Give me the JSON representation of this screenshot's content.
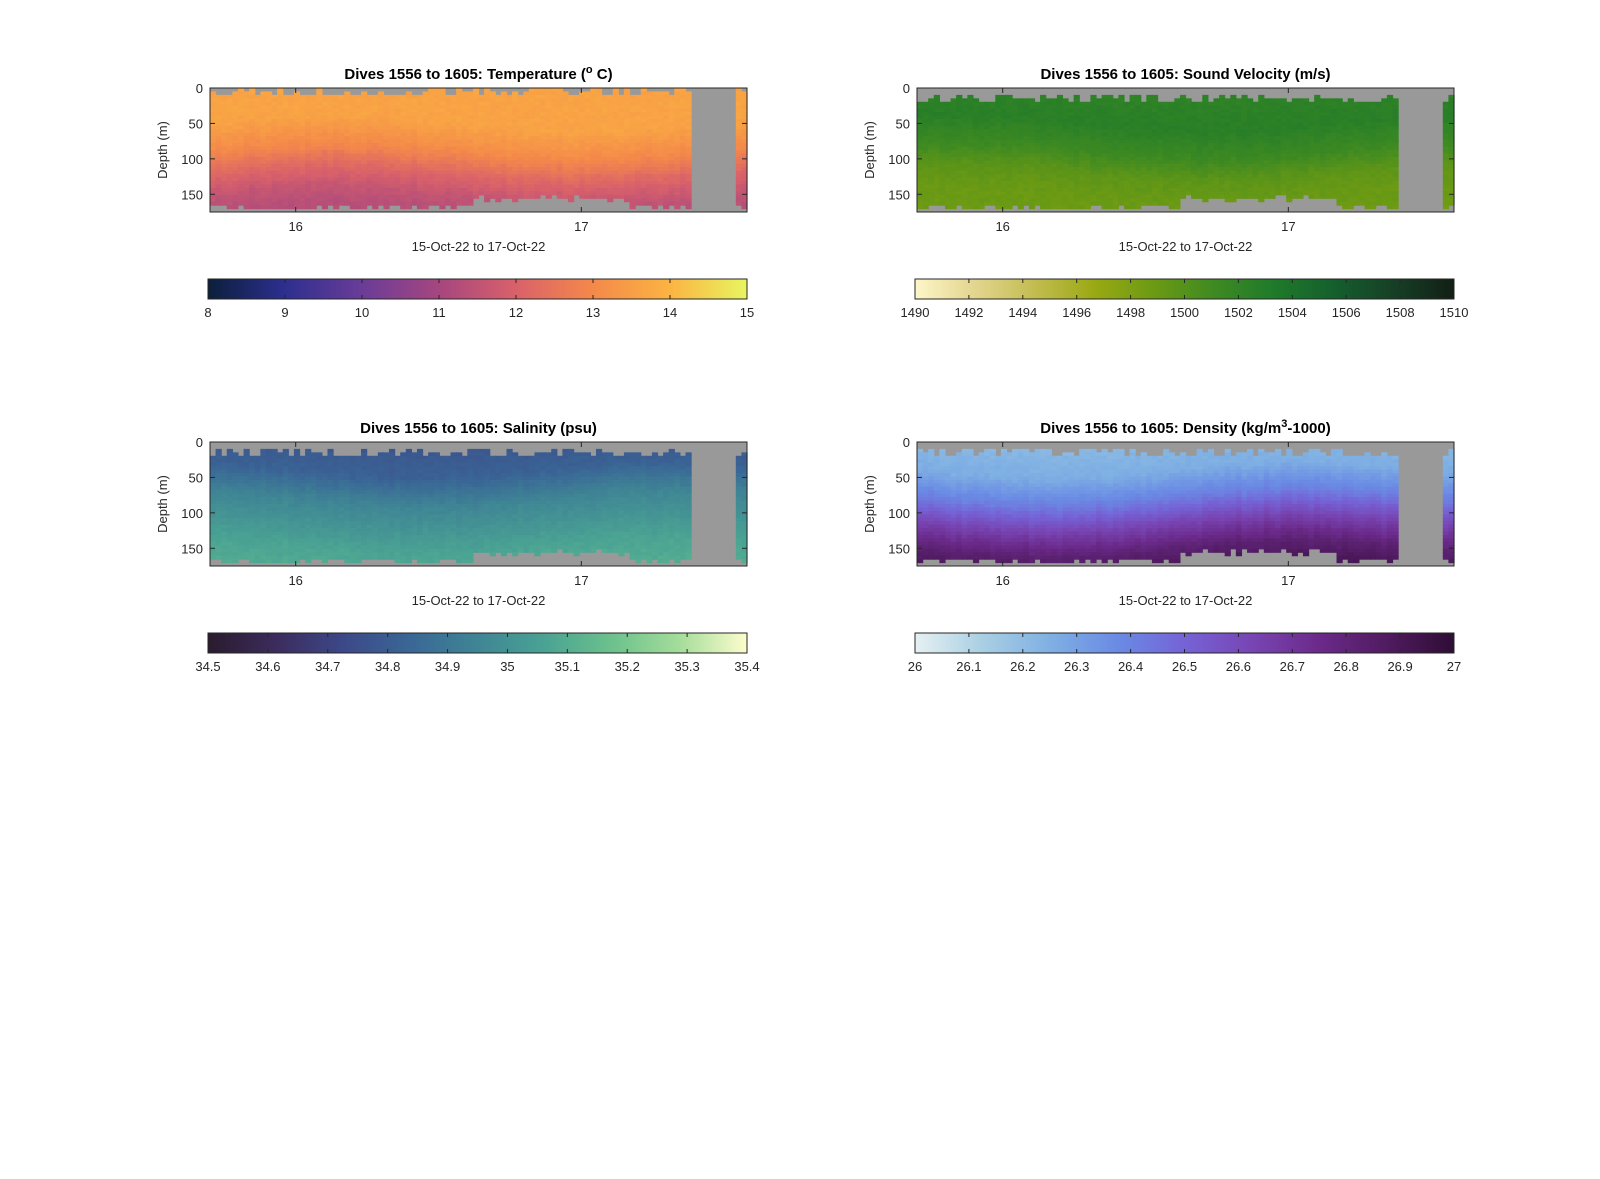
{
  "figure": {
    "panels": [
      {
        "id": "temperature",
        "title_main": "Dives 1556 to 1605: Temperature (",
        "title_sup": "o",
        "title_tail": " C)",
        "ylabel": "Depth (m)",
        "xlabel": "15-Oct-22 to 17-Oct-22",
        "colormap": [
          "#0b1f3b",
          "#2d2f8f",
          "#6a3c98",
          "#a6467f",
          "#d9616a",
          "#f4894a",
          "#fbb442",
          "#e8f560"
        ],
        "colorbar_ticks": [
          "8",
          "9",
          "10",
          "11",
          "12",
          "13",
          "14",
          "15"
        ]
      },
      {
        "id": "sound-velocity",
        "title_main": "Dives 1556 to 1605: Sound Velocity (m/s)",
        "title_sup": "",
        "title_tail": "",
        "ylabel": "Depth (m)",
        "xlabel": "15-Oct-22 to 17-Oct-22",
        "colormap": [
          "#fdf6c8",
          "#e3d58f",
          "#c3bc50",
          "#99a913",
          "#6b9a14",
          "#3e8a22",
          "#1f7a2a",
          "#155f2d",
          "#163f26",
          "#121f14"
        ],
        "colorbar_ticks": [
          "1490",
          "1492",
          "1494",
          "1496",
          "1498",
          "1500",
          "1502",
          "1504",
          "1506",
          "1508",
          "1510"
        ]
      },
      {
        "id": "salinity",
        "title_main": "Dives 1556 to 1605: Salinity (psu)",
        "title_sup": "",
        "title_tail": "",
        "ylabel": "Depth (m)",
        "xlabel": "15-Oct-22 to 17-Oct-22",
        "colormap": [
          "#2a1b2e",
          "#3b2c5c",
          "#3c4888",
          "#3a6796",
          "#3f8595",
          "#4aa393",
          "#6cc18c",
          "#a5dd9b",
          "#fdfdcc"
        ],
        "colorbar_ticks": [
          "34.5",
          "34.6",
          "34.7",
          "34.8",
          "34.9",
          "35",
          "35.1",
          "35.2",
          "35.3",
          "35.4"
        ]
      },
      {
        "id": "density",
        "title_main": "Dives 1556 to 1605: Density (kg/m",
        "title_sup": "3",
        "title_tail": "-1000)",
        "ylabel": "Depth (m)",
        "xlabel": "15-Oct-22 to 17-Oct-22",
        "colormap": [
          "#e6f1f2",
          "#a9cfe3",
          "#7fb0e3",
          "#6a8be4",
          "#7563d6",
          "#7845b3",
          "#6b2a8a",
          "#501b60",
          "#2e0d35"
        ],
        "colorbar_ticks": [
          "26",
          "26.1",
          "26.2",
          "26.3",
          "26.4",
          "26.5",
          "26.6",
          "26.7",
          "26.8",
          "26.9",
          "27"
        ]
      }
    ]
  },
  "chart_data": [
    {
      "type": "heatmap",
      "title": "Dives 1556 to 1605: Temperature (° C)",
      "xlabel": "15-Oct-22 to 17-Oct-22",
      "ylabel": "Depth (m)",
      "x_ticks": [
        "16",
        "17"
      ],
      "y_ticks": [
        0,
        50,
        100,
        150
      ],
      "ylim": [
        0,
        175
      ],
      "y_reversed": true,
      "x_range_days": [
        15.7,
        17.58
      ],
      "missing_data_color": "#999999",
      "colorbar": {
        "min": 8,
        "max": 15,
        "ticks": [
          8,
          9,
          10,
          11,
          12,
          13,
          14,
          15
        ]
      },
      "profile": {
        "depth_m": [
          0,
          50,
          90,
          120,
          150,
          175
        ],
        "value": [
          13.6,
          13.6,
          13.0,
          12.2,
          11.6,
          11.3
        ]
      }
    },
    {
      "type": "heatmap",
      "title": "Dives 1556 to 1605: Sound Velocity (m/s)",
      "xlabel": "15-Oct-22 to 17-Oct-22",
      "ylabel": "Depth (m)",
      "x_ticks": [
        "16",
        "17"
      ],
      "y_ticks": [
        0,
        50,
        100,
        150
      ],
      "ylim": [
        0,
        175
      ],
      "y_reversed": true,
      "x_range_days": [
        15.7,
        17.58
      ],
      "missing_data_color": "#999999",
      "colorbar": {
        "min": 1490,
        "max": 1510,
        "ticks": [
          1490,
          1492,
          1494,
          1496,
          1498,
          1500,
          1502,
          1504,
          1506,
          1508,
          1510
        ]
      },
      "profile": {
        "depth_m": [
          0,
          50,
          90,
          120,
          150,
          175
        ],
        "value": [
          1502.2,
          1502.6,
          1501.2,
          1499.6,
          1499.0,
          1498.8
        ]
      }
    },
    {
      "type": "heatmap",
      "title": "Dives 1556 to 1605: Salinity (psu)",
      "xlabel": "15-Oct-22 to 17-Oct-22",
      "ylabel": "Depth (m)",
      "x_ticks": [
        "16",
        "17"
      ],
      "y_ticks": [
        0,
        50,
        100,
        150
      ],
      "ylim": [
        0,
        175
      ],
      "y_reversed": true,
      "x_range_days": [
        15.7,
        17.58
      ],
      "missing_data_color": "#999999",
      "colorbar": {
        "min": 34.5,
        "max": 35.4,
        "ticks": [
          34.5,
          34.6,
          34.7,
          34.8,
          34.9,
          35,
          35.1,
          35.2,
          35.3,
          35.4
        ]
      },
      "profile": {
        "depth_m": [
          0,
          40,
          80,
          120,
          150,
          175
        ],
        "value": [
          34.78,
          34.82,
          34.95,
          35.02,
          35.07,
          35.09
        ]
      }
    },
    {
      "type": "heatmap",
      "title": "Dives 1556 to 1605: Density (kg/m³-1000)",
      "xlabel": "15-Oct-22 to 17-Oct-22",
      "ylabel": "Depth (m)",
      "x_ticks": [
        "16",
        "17"
      ],
      "y_ticks": [
        0,
        50,
        100,
        150
      ],
      "ylim": [
        0,
        175
      ],
      "y_reversed": true,
      "x_range_days": [
        15.7,
        17.58
      ],
      "missing_data_color": "#999999",
      "colorbar": {
        "min": 26,
        "max": 27,
        "ticks": [
          26,
          26.1,
          26.2,
          26.3,
          26.4,
          26.5,
          26.6,
          26.7,
          26.8,
          26.9,
          27
        ]
      },
      "profile": {
        "depth_m": [
          0,
          40,
          80,
          120,
          150,
          175
        ],
        "value": [
          26.22,
          26.26,
          26.42,
          26.66,
          26.82,
          26.9
        ]
      }
    }
  ]
}
